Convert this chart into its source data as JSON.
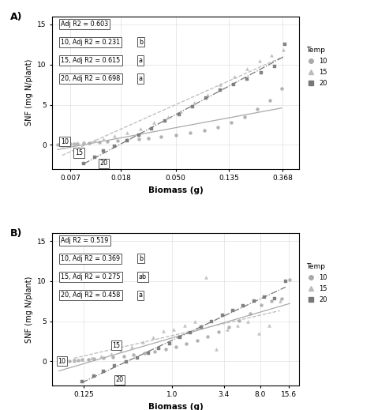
{
  "panel_A": {
    "title": "A)",
    "xlabel": "Biomass (g)",
    "ylabel": "SNF (mg N/plant)",
    "xticks": [
      0.007,
      0.018,
      0.05,
      0.135,
      0.368
    ],
    "xtick_labels": [
      "0.007",
      "0.018",
      "0.050",
      "0.135",
      "0.368"
    ],
    "xlim": [
      0.005,
      0.5
    ],
    "ylim": [
      -3,
      16
    ],
    "yticks": [
      0,
      5,
      10,
      15
    ],
    "ann_overall": "Adj R2 = 0.603",
    "ann_temp10": "10, Adj R2 = 0.231",
    "ann_temp15": "15, Adj R2 = 0.615",
    "ann_temp20": "20, Adj R2 = 0.698",
    "sig10": "b",
    "sig15": "a",
    "sig20": "a",
    "lbl10_x": 0.0063,
    "lbl10_y": 0.4,
    "lbl15_x": 0.0082,
    "lbl15_y": -1.0,
    "lbl20_x": 0.013,
    "lbl20_y": -2.3,
    "data_10_x": [
      0.0055,
      0.006,
      0.0062,
      0.0065,
      0.007,
      0.0075,
      0.008,
      0.009,
      0.01,
      0.012,
      0.014,
      0.017,
      0.02,
      0.025,
      0.03,
      0.038,
      0.05,
      0.065,
      0.085,
      0.11,
      0.14,
      0.18,
      0.23,
      0.29,
      0.36
    ],
    "data_10_y": [
      0.05,
      0.08,
      0.05,
      0.1,
      0.1,
      0.12,
      0.15,
      0.2,
      0.25,
      0.3,
      0.4,
      0.5,
      0.6,
      0.7,
      0.85,
      1.0,
      1.2,
      1.5,
      1.8,
      2.2,
      2.8,
      3.5,
      4.5,
      5.5,
      7.0
    ],
    "data_15_x": [
      0.006,
      0.007,
      0.0075,
      0.008,
      0.009,
      0.011,
      0.013,
      0.016,
      0.02,
      0.026,
      0.033,
      0.043,
      0.055,
      0.07,
      0.09,
      0.115,
      0.15,
      0.19,
      0.24,
      0.3,
      0.37
    ],
    "data_15_y": [
      -0.1,
      0.05,
      0.1,
      0.2,
      0.3,
      0.5,
      0.7,
      1.1,
      1.5,
      2.0,
      2.8,
      3.5,
      4.2,
      5.2,
      6.2,
      7.5,
      8.5,
      9.5,
      10.5,
      11.2,
      11.8
    ],
    "data_20_x": [
      0.009,
      0.011,
      0.013,
      0.016,
      0.02,
      0.025,
      0.032,
      0.041,
      0.053,
      0.068,
      0.088,
      0.115,
      0.148,
      0.19,
      0.245,
      0.315,
      0.38
    ],
    "data_20_y": [
      -2.3,
      -1.5,
      -0.8,
      -0.2,
      0.5,
      1.2,
      2.0,
      3.0,
      3.8,
      4.8,
      5.8,
      6.8,
      7.5,
      8.2,
      9.0,
      9.8,
      12.5
    ]
  },
  "panel_B": {
    "title": "B)",
    "xlabel": "Biomass (g)",
    "ylabel": "SNF (mg N/plant)",
    "xticks": [
      0.125,
      1.0,
      3.4,
      8.0,
      15.6
    ],
    "xtick_labels": [
      "0.125",
      "1.0",
      "3.4",
      "8.0",
      "15.6"
    ],
    "xlim": [
      0.06,
      20
    ],
    "ylim": [
      -3,
      16
    ],
    "yticks": [
      0,
      5,
      10,
      15
    ],
    "ann_overall": "Adj R2 = 0.519",
    "ann_temp10": "10, Adj R2 = 0.369",
    "ann_temp15": "15, Adj R2 = 0.275",
    "ann_temp20": "20, Adj R2 = 0.458",
    "sig10": "b",
    "sig15": "ab",
    "sig20": "a",
    "lbl10_x": 0.075,
    "lbl10_y": 0.0,
    "lbl15_x": 0.27,
    "lbl15_y": 2.0,
    "lbl20_x": 0.29,
    "lbl20_y": -2.3,
    "data_10_x": [
      0.07,
      0.08,
      0.09,
      0.1,
      0.11,
      0.12,
      0.14,
      0.16,
      0.2,
      0.25,
      0.32,
      0.4,
      0.52,
      0.67,
      0.87,
      1.1,
      1.4,
      1.8,
      2.3,
      3.0,
      3.8,
      4.9,
      6.3,
      8.1,
      10.4,
      13.3,
      16.0
    ],
    "data_10_y": [
      0.0,
      0.0,
      0.05,
      0.1,
      0.15,
      0.2,
      0.25,
      0.3,
      0.4,
      0.5,
      0.65,
      0.8,
      1.0,
      1.2,
      1.5,
      1.8,
      2.2,
      2.6,
      3.1,
      3.7,
      4.3,
      5.1,
      5.9,
      7.0,
      7.5,
      7.8,
      10.2
    ],
    "data_15_x": [
      0.1,
      0.12,
      0.15,
      0.19,
      0.24,
      0.3,
      0.39,
      0.5,
      0.64,
      0.82,
      1.05,
      1.35,
      1.73,
      2.22,
      2.85,
      3.65,
      4.68,
      6.0,
      7.7,
      9.9,
      12.7
    ],
    "data_15_y": [
      0.05,
      0.2,
      0.4,
      0.6,
      0.9,
      1.3,
      1.8,
      2.4,
      3.0,
      3.8,
      4.0,
      4.5,
      5.0,
      10.5,
      1.5,
      4.0,
      4.5,
      5.0,
      3.5,
      4.5,
      7.5
    ],
    "data_20_x": [
      0.12,
      0.16,
      0.2,
      0.26,
      0.34,
      0.44,
      0.57,
      0.73,
      0.94,
      1.2,
      1.54,
      1.98,
      2.54,
      3.26,
      4.18,
      5.37,
      6.89,
      8.84,
      11.3,
      14.5
    ],
    "data_20_y": [
      -2.5,
      -1.8,
      -1.2,
      -0.6,
      -0.1,
      0.4,
      1.0,
      1.6,
      2.2,
      3.0,
      3.6,
      4.3,
      5.0,
      5.7,
      6.3,
      6.9,
      7.5,
      8.0,
      7.8,
      10.0
    ]
  },
  "color10": "#aaaaaa",
  "color15": "#bbbbbb",
  "color20": "#777777",
  "marker10": "o",
  "marker15": "^",
  "marker20": "s",
  "ls10": "-",
  "ls15": "--",
  "ls20": "-.",
  "bg": "#ffffff",
  "grid_color": "#e0e0e0"
}
